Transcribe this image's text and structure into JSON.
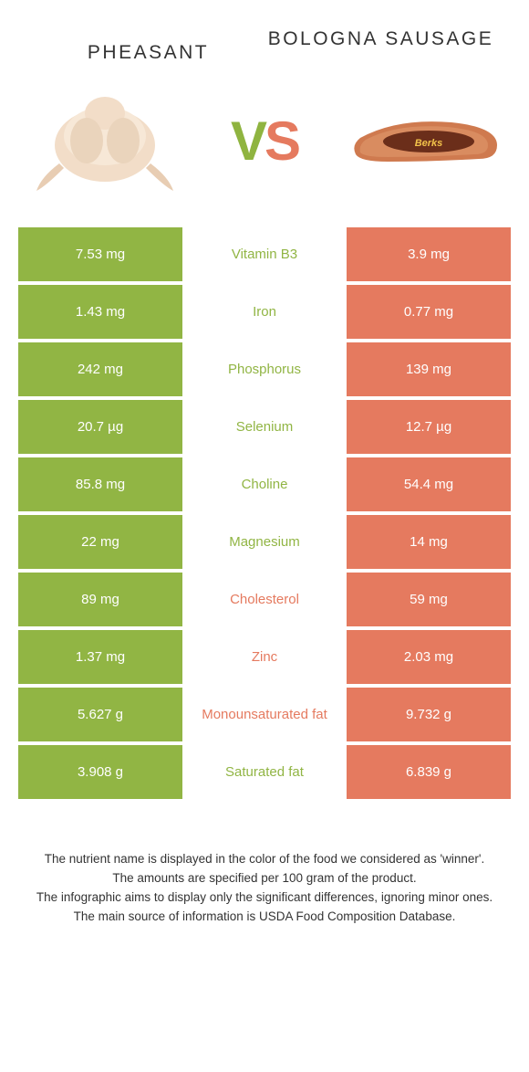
{
  "header": {
    "left_title": "Pheasant",
    "right_title": "Bologna sausage",
    "vs_v": "V",
    "vs_s": "S"
  },
  "colors": {
    "green": "#91b544",
    "red": "#e57a5f",
    "text": "#333333",
    "background": "#ffffff"
  },
  "rows": [
    {
      "left": "7.53 mg",
      "label": "Vitamin B3",
      "right": "3.9 mg",
      "winner": "left"
    },
    {
      "left": "1.43 mg",
      "label": "Iron",
      "right": "0.77 mg",
      "winner": "left"
    },
    {
      "left": "242 mg",
      "label": "Phosphorus",
      "right": "139 mg",
      "winner": "left"
    },
    {
      "left": "20.7 µg",
      "label": "Selenium",
      "right": "12.7 µg",
      "winner": "left"
    },
    {
      "left": "85.8 mg",
      "label": "Choline",
      "right": "54.4 mg",
      "winner": "left"
    },
    {
      "left": "22 mg",
      "label": "Magnesium",
      "right": "14 mg",
      "winner": "left"
    },
    {
      "left": "89 mg",
      "label": "Cholesterol",
      "right": "59 mg",
      "winner": "right"
    },
    {
      "left": "1.37 mg",
      "label": "Zinc",
      "right": "2.03 mg",
      "winner": "right"
    },
    {
      "left": "5.627 g",
      "label": "Monounsaturated fat",
      "right": "9.732 g",
      "winner": "right"
    },
    {
      "left": "3.908 g",
      "label": "Saturated fat",
      "right": "6.839 g",
      "winner": "left"
    }
  ],
  "footer": {
    "line1": "The nutrient name is displayed in the color of the food we considered as 'winner'.",
    "line2": "The amounts are specified per 100 gram of the product.",
    "line3": "The infographic aims to display only the significant differences, ignoring minor ones.",
    "line4": "The main source of information is USDA Food Composition Database."
  }
}
